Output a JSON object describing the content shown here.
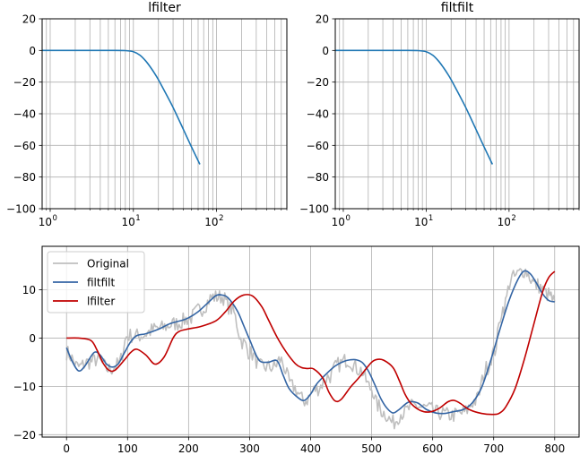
{
  "chart_data": [
    {
      "type": "line",
      "title": "lfilter",
      "xscale": "log",
      "xlim": [
        0.8,
        700
      ],
      "ylim": [
        -100,
        20
      ],
      "yticks": [
        20,
        0,
        -20,
        -40,
        -60,
        -80,
        -100
      ],
      "ytick_labels": [
        "20",
        "0",
        "−20",
        "−40",
        "−60",
        "−80",
        "−100"
      ],
      "xtick_labels": [
        {
          "base": "10",
          "exp": "0"
        },
        {
          "base": "10",
          "exp": "1"
        },
        {
          "base": "10",
          "exp": "2"
        }
      ],
      "grid": true,
      "series": [
        {
          "color": "#1f77b4",
          "x": [
            0.8,
            1,
            2,
            5,
            8,
            10,
            12,
            14,
            16,
            18,
            20,
            25,
            30,
            40,
            50,
            63
          ],
          "y": [
            0,
            0,
            0,
            0,
            -0.1,
            -0.8,
            -3,
            -6.5,
            -10.5,
            -14.5,
            -18.5,
            -28,
            -36,
            -50,
            -61,
            -72
          ]
        }
      ]
    },
    {
      "type": "line",
      "title": "filtfilt",
      "xscale": "log",
      "xlim": [
        0.8,
        700
      ],
      "ylim": [
        -100,
        20
      ],
      "yticks": [
        20,
        0,
        -20,
        -40,
        -60,
        -80,
        -100
      ],
      "ytick_labels": [
        "20",
        "0",
        "−20",
        "−40",
        "−60",
        "−80",
        "−100"
      ],
      "xtick_labels": [
        {
          "base": "10",
          "exp": "0"
        },
        {
          "base": "10",
          "exp": "1"
        },
        {
          "base": "10",
          "exp": "2"
        }
      ],
      "grid": true,
      "series": [
        {
          "color": "#1f77b4",
          "x": [
            0.8,
            1,
            2,
            5,
            8,
            10,
            12,
            14,
            16,
            18,
            20,
            25,
            30,
            40,
            50,
            63
          ],
          "y": [
            0,
            0,
            0,
            0,
            -0.1,
            -0.8,
            -3,
            -6.5,
            -10.5,
            -14.5,
            -18.5,
            -28,
            -36,
            -50,
            -61,
            -72
          ]
        }
      ]
    },
    {
      "type": "line",
      "xlim": [
        -40,
        840
      ],
      "ylim": [
        -20.5,
        19
      ],
      "xticks": [
        0,
        100,
        200,
        300,
        400,
        500,
        600,
        700,
        800
      ],
      "xtick_labels": [
        "0",
        "100",
        "200",
        "300",
        "400",
        "500",
        "600",
        "700",
        "800"
      ],
      "yticks": [
        10,
        0,
        -10,
        -20
      ],
      "ytick_labels": [
        "10",
        "0",
        "−10",
        "−20"
      ],
      "grid": true,
      "legend": "top-left",
      "series": [
        {
          "name": "Original",
          "color": "#bfbfbf",
          "noisy": true,
          "x": [
            0,
            20,
            35,
            50,
            70,
            85,
            100,
            120,
            150,
            180,
            200,
            220,
            240,
            255,
            270,
            290,
            300,
            320,
            340,
            350,
            370,
            390,
            410,
            430,
            445,
            460,
            480,
            500,
            510,
            520,
            535,
            550,
            570,
            590,
            610,
            630,
            650,
            670,
            690,
            700,
            715,
            730,
            750,
            770,
            790,
            800
          ],
          "y": [
            -3,
            -6,
            -5,
            -4.5,
            -6.5,
            -5.5,
            0.5,
            0.5,
            2,
            3,
            4,
            6,
            8.5,
            8.5,
            6,
            -1,
            -3,
            -6,
            -6,
            -4.5,
            -10,
            -13,
            -10.5,
            -8,
            -5.5,
            -4.5,
            -6.5,
            -10.5,
            -14,
            -15.5,
            -17.5,
            -15.5,
            -14,
            -14.5,
            -15.5,
            -16,
            -15.5,
            -13,
            -6,
            -3,
            6,
            12.5,
            14,
            11,
            9,
            7.5
          ]
        },
        {
          "name": "filtfilt",
          "color": "#3465a4",
          "x": [
            0,
            10,
            20,
            30,
            45,
            55,
            65,
            75,
            85,
            95,
            105,
            115,
            130,
            150,
            170,
            190,
            200,
            215,
            230,
            245,
            255,
            265,
            280,
            290,
            300,
            315,
            330,
            345,
            355,
            365,
            380,
            390,
            400,
            410,
            425,
            440,
            455,
            465,
            475,
            485,
            495,
            505,
            515,
            525,
            535,
            545,
            560,
            575,
            590,
            605,
            620,
            635,
            650,
            665,
            680,
            695,
            710,
            725,
            740,
            750,
            760,
            770,
            780,
            790,
            800
          ],
          "y": [
            -2,
            -5,
            -6.8,
            -5.8,
            -3,
            -3.5,
            -5.3,
            -6,
            -5.3,
            -3,
            -0.8,
            0.5,
            0.9,
            1.8,
            3,
            3.7,
            4.2,
            5.4,
            7.1,
            8.8,
            8.9,
            8.3,
            5.6,
            2.7,
            -0.3,
            -4.5,
            -5,
            -4.7,
            -7.7,
            -10.5,
            -12.4,
            -12.9,
            -11.6,
            -9.5,
            -7.5,
            -5.8,
            -4.8,
            -4.5,
            -4.5,
            -5.1,
            -6.9,
            -9.6,
            -12.5,
            -14.5,
            -15.5,
            -14.8,
            -13.3,
            -13.4,
            -14.8,
            -15.5,
            -15.6,
            -15.2,
            -14.8,
            -13.4,
            -10.3,
            -4.7,
            1.7,
            7.7,
            12.2,
            13.9,
            13.3,
            11.4,
            9.2,
            7.8,
            7.5
          ]
        },
        {
          "name": "lfilter",
          "color": "#c00000",
          "x": [
            0,
            20,
            40,
            50,
            60,
            70,
            80,
            95,
            105,
            115,
            130,
            145,
            160,
            175,
            185,
            200,
            220,
            245,
            260,
            275,
            290,
            305,
            320,
            330,
            345,
            360,
            375,
            385,
            395,
            405,
            420,
            430,
            440,
            450,
            465,
            475,
            485,
            500,
            510,
            520,
            535,
            545,
            555,
            565,
            580,
            595,
            610,
            625,
            635,
            645,
            660,
            680,
            700,
            710,
            720,
            735,
            750,
            765,
            780,
            790,
            800
          ],
          "y": [
            0,
            0,
            -0.5,
            -2.5,
            -5.2,
            -6.7,
            -6.6,
            -4.5,
            -3,
            -2.3,
            -3.5,
            -5.4,
            -3.9,
            0.1,
            1.4,
            1.9,
            2.4,
            3.6,
            5.4,
            7.7,
            8.9,
            8.7,
            6.5,
            4,
            0.2,
            -2.9,
            -5.3,
            -6.1,
            -6.3,
            -6.4,
            -8.3,
            -11.2,
            -13,
            -12.7,
            -10.2,
            -8.8,
            -7.3,
            -5,
            -4.4,
            -4.6,
            -6.1,
            -8.7,
            -11.7,
            -13.6,
            -15,
            -15.3,
            -14.6,
            -13.2,
            -12.9,
            -13.5,
            -14.8,
            -15.6,
            -15.8,
            -15.5,
            -14.2,
            -10.5,
            -4.5,
            2.5,
            9.5,
            12.5,
            13.8
          ]
        }
      ]
    }
  ]
}
